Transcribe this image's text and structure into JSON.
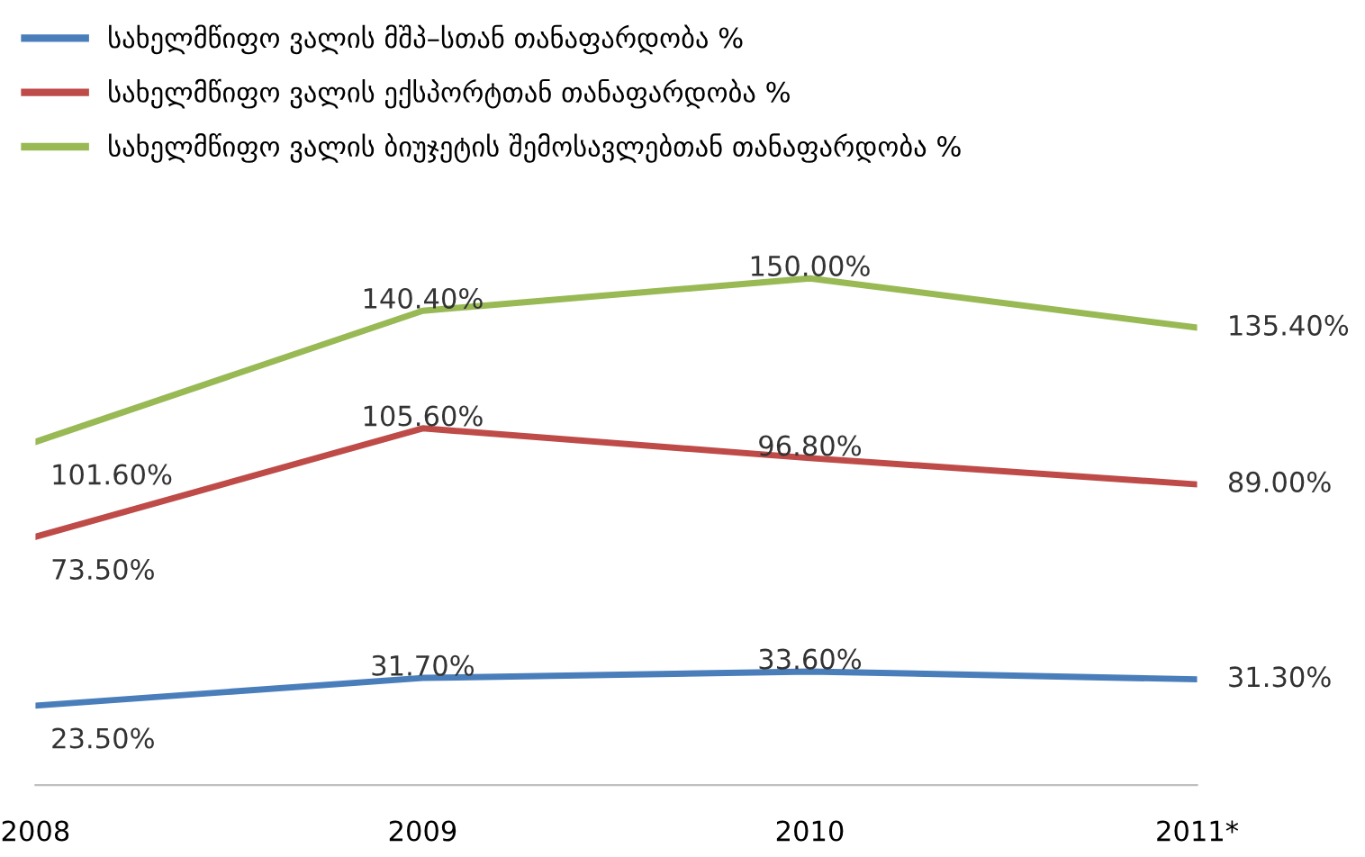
{
  "chart_data": {
    "type": "line",
    "categories": [
      "2008",
      "2009",
      "2010",
      "2011*"
    ],
    "series": [
      {
        "name": "სახელმწიფო ვალის მშპ–სთან თანაფარდობა %",
        "color": "#4a7ebb",
        "values": [
          23.5,
          31.7,
          33.6,
          31.3
        ],
        "value_labels": [
          "23.50%",
          "31.70%",
          "33.60%",
          "31.30%"
        ]
      },
      {
        "name": "სახელმწიფო ვალის ექსპორტთან თანაფარდობა %",
        "color": "#be4b48",
        "values": [
          73.5,
          105.6,
          96.8,
          89.0
        ],
        "value_labels": [
          "73.50%",
          "105.60%",
          "96.80%",
          "89.00%"
        ]
      },
      {
        "name": "სახელმწიფო ვალის ბიუჯეტის შემოსავლებთან თანაფარდობა %",
        "color": "#98b954",
        "values": [
          101.6,
          140.4,
          150.0,
          135.4
        ],
        "value_labels": [
          "101.60%",
          "140.40%",
          "150.00%",
          "135.40%"
        ]
      }
    ],
    "legend": "top left",
    "grid": false,
    "marker": "none",
    "line_style": "solid"
  }
}
